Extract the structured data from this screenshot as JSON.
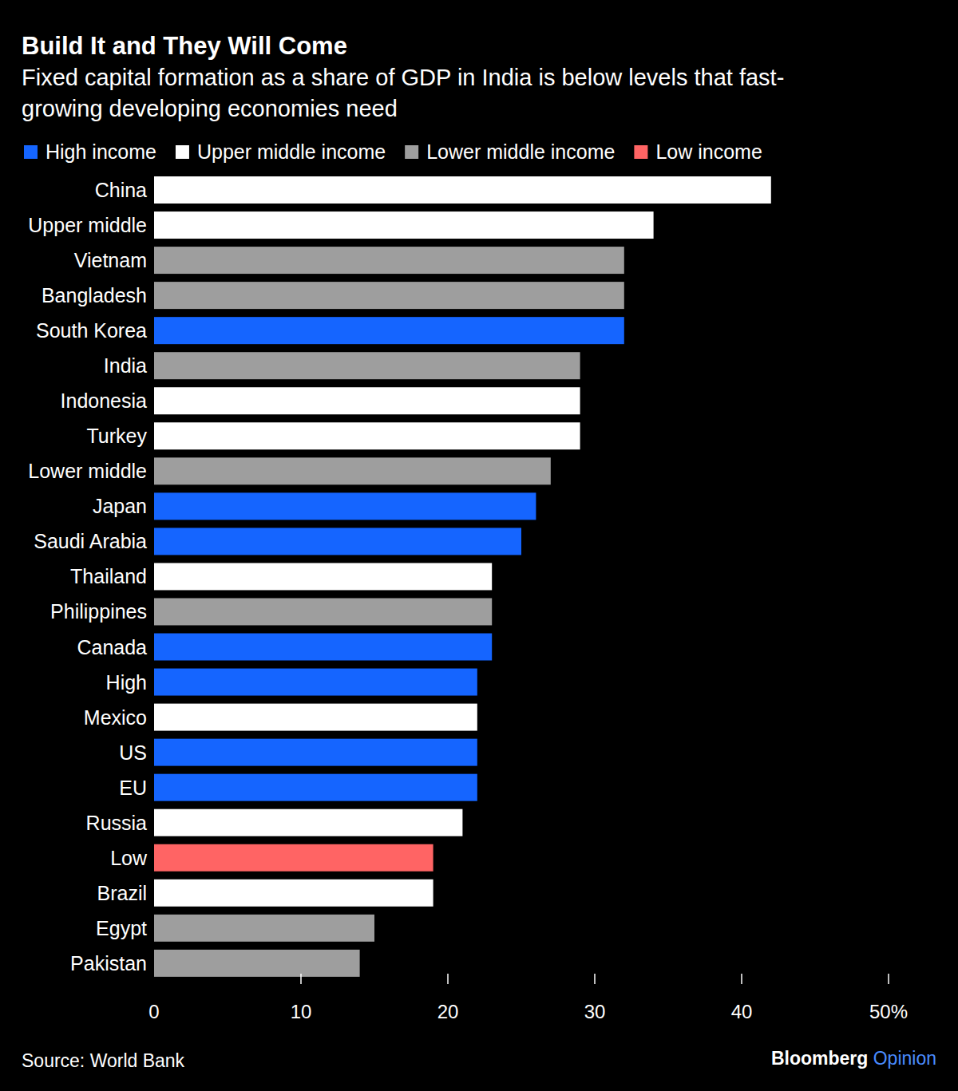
{
  "chart_data": {
    "type": "bar",
    "orientation": "horizontal",
    "title": "Build It and They Will Come",
    "subtitle": [
      "Fixed capital formation as a share of GDP in India is below levels that fast-",
      "growing developing economies need"
    ],
    "legend_entries": [
      {
        "name": "High income",
        "color": "#1565ff"
      },
      {
        "name": "Upper middle income",
        "color": "#ffffff"
      },
      {
        "name": "Lower middle income",
        "color": "#9e9e9e"
      },
      {
        "name": "Low income",
        "color": "#ff6464"
      }
    ],
    "categories": [
      "China",
      "Upper middle",
      "Vietnam",
      "Bangladesh",
      "South Korea",
      "India",
      "Indonesia",
      "Turkey",
      "Lower middle",
      "Japan",
      "Saudi Arabia",
      "Thailand",
      "Philippines",
      "Canada",
      "High",
      "Mexico",
      "US",
      "EU",
      "Russia",
      "Low",
      "Brazil",
      "Egypt",
      "Pakistan"
    ],
    "values": [
      42,
      34,
      32,
      32,
      32,
      29,
      29,
      29,
      27,
      26,
      25,
      23,
      23,
      23,
      22,
      22,
      22,
      22,
      21,
      19,
      19,
      15,
      14
    ],
    "colors": [
      "#ffffff",
      "#ffffff",
      "#9e9e9e",
      "#9e9e9e",
      "#1565ff",
      "#9e9e9e",
      "#ffffff",
      "#ffffff",
      "#9e9e9e",
      "#1565ff",
      "#1565ff",
      "#ffffff",
      "#9e9e9e",
      "#1565ff",
      "#1565ff",
      "#ffffff",
      "#1565ff",
      "#1565ff",
      "#ffffff",
      "#ff6464",
      "#ffffff",
      "#9e9e9e",
      "#9e9e9e"
    ],
    "xlim": [
      0,
      50
    ],
    "xticks": [
      0,
      10,
      20,
      30,
      40,
      {
        "value": 50,
        "label": "50%"
      }
    ],
    "grid": false,
    "source": "Source: World Bank",
    "brand": "Bloomberg",
    "brand_suffix": "Opinion"
  }
}
